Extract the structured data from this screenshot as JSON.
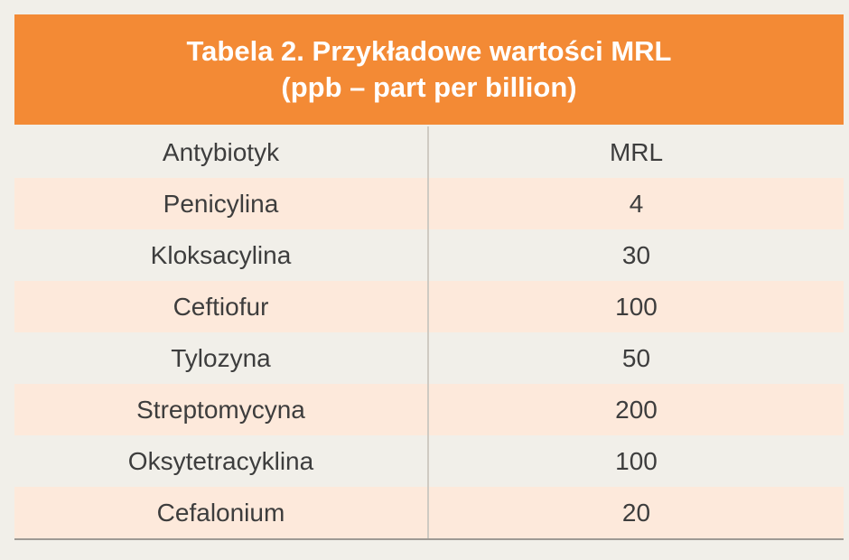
{
  "table": {
    "title_line1": "Tabela 2. Przykładowe wartości MRL",
    "title_line2": "(ppb – part per billion)",
    "headers": [
      "Antybiotyk",
      "MRL"
    ],
    "rows": [
      {
        "name": "Penicylina",
        "value": "4"
      },
      {
        "name": "Kloksacylina",
        "value": "30"
      },
      {
        "name": "Ceftiofur",
        "value": "100"
      },
      {
        "name": "Tylozyna",
        "value": "50"
      },
      {
        "name": "Streptomycyna",
        "value": "200"
      },
      {
        "name": "Oksytetracyklina",
        "value": "100"
      },
      {
        "name": "Cefalonium",
        "value": "20"
      }
    ]
  },
  "colors": {
    "header_band": "#f38a35",
    "stripe": "#fde9db",
    "background": "#f1efe9",
    "text": "#3d3d3d"
  }
}
